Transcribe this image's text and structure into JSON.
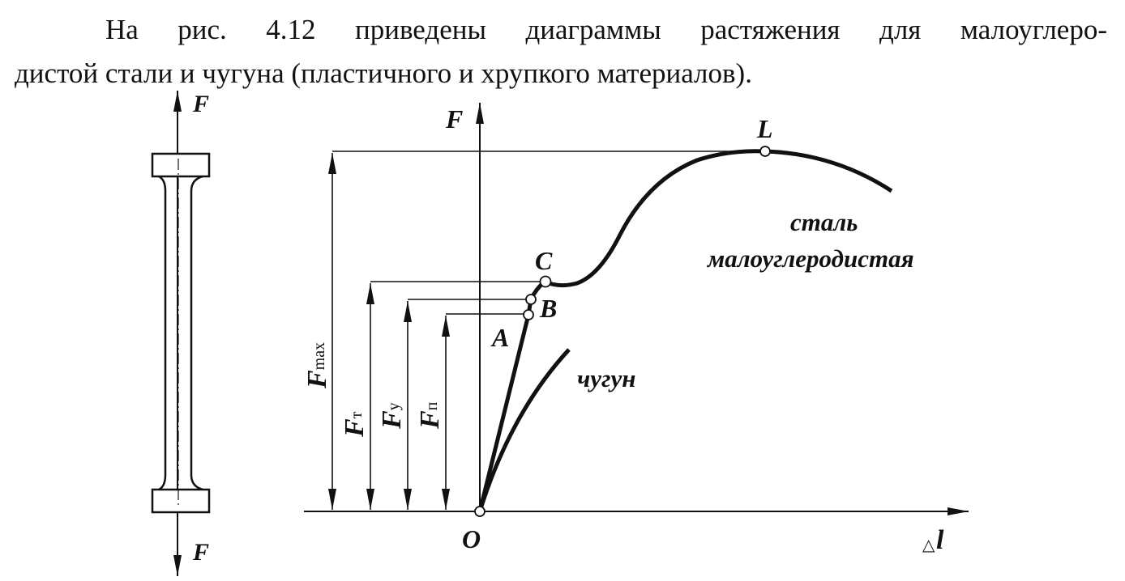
{
  "paragraph": {
    "line1": "На рис. 4.12 приведены диаграммы растяжения для малоуглеро-",
    "line2": "дистой стали и чугуна (пластичного и хрупкого материалов)."
  },
  "figure": {
    "specimen_force_top": "F",
    "specimen_force_bottom": "F",
    "axis_y_label": "F",
    "axis_x_label_delta": "△",
    "axis_x_label": "l",
    "origin_label": "O",
    "points": {
      "A": "A",
      "B": "B",
      "C": "C",
      "L": "L"
    },
    "dimensions": {
      "fmax": {
        "main": "F",
        "sub": "max"
      },
      "ft": {
        "main": "F",
        "sub": "т"
      },
      "fy": {
        "main": "F",
        "sub": "у"
      },
      "fp": {
        "main": "F",
        "sub": "п"
      }
    },
    "curve_steel_label_1": "сталь",
    "curve_steel_label_2": "малоуглеродистая",
    "curve_iron_label": "чугун"
  }
}
